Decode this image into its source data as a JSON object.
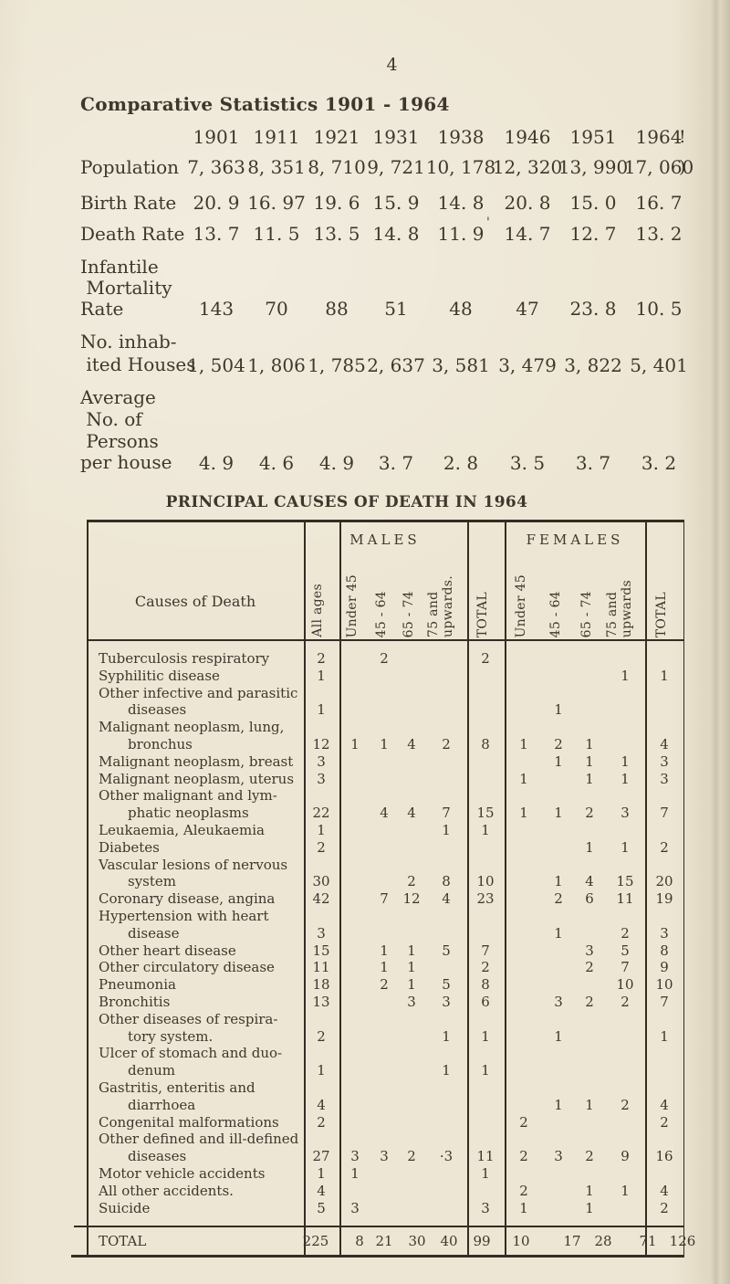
{
  "page": {
    "number": "4",
    "title": "Comparative Statistics 1901 - 1964"
  },
  "stats": {
    "years": [
      "1901",
      "1911",
      "1921",
      "1931",
      "1938",
      "1946",
      "1951",
      "1964"
    ],
    "years_edge_mark": "!",
    "rows": [
      {
        "id": "population",
        "label_lines": [
          "Population"
        ],
        "values": [
          "7, 363",
          "8, 351",
          "8, 710",
          "9, 721",
          "10, 178",
          "12, 320",
          "13, 990",
          "17, 060"
        ],
        "edge_mark": ")"
      },
      {
        "id": "birth-rate",
        "label_lines": [
          "Birth Rate"
        ],
        "values": [
          "20. 9",
          "16. 97",
          "19. 6",
          "15. 9",
          "14. 8",
          "20. 8",
          "15. 0",
          "16. 7"
        ]
      },
      {
        "id": "death-rate",
        "label_lines": [
          "Death Rate"
        ],
        "values": [
          "13. 7",
          "11. 5",
          "13. 5",
          "14. 8",
          "11. 9",
          "14. 7",
          "12. 7",
          "13. 2"
        ]
      },
      {
        "id": "infantile-mortality-rate",
        "label_lines": [
          "Infantile",
          " Mortality",
          "Rate"
        ],
        "values": [
          "143",
          "70",
          "88",
          "51",
          "48",
          "47",
          "23. 8",
          "10. 5"
        ]
      },
      {
        "id": "inhabited-houses",
        "label_lines": [
          "No. inhab-",
          " ited Houses"
        ],
        "values": [
          "1, 504",
          "1, 806",
          "1, 785",
          "2, 637",
          "3, 581",
          "3, 479",
          "3, 822",
          "5, 401"
        ]
      },
      {
        "id": "persons-per-house",
        "label_lines": [
          "Average",
          " No. of",
          " Persons",
          "per house"
        ],
        "values": [
          "4. 9",
          "4. 6",
          "4. 9",
          "3. 7",
          "2. 8",
          "3. 5",
          "3. 7",
          "3. 2"
        ]
      }
    ],
    "death_rate_tick": "'"
  },
  "death_table": {
    "title": "PRINCIPAL CAUSES OF DEATH IN 1964",
    "headers": {
      "causes": "Causes of Death",
      "all_ages": "All ages",
      "males": "MALES",
      "females": "FEMALES",
      "male_age_cols": [
        "Under 45",
        "45 - 64",
        "65 - 74",
        "75 and\nupwards."
      ],
      "female_age_cols": [
        "Under 45",
        "45 - 64",
        "65 - 74",
        "75 and\nupwards"
      ],
      "male_total": "TOTAL",
      "female_total": "TOTAL"
    },
    "rows": [
      {
        "cause_lines": [
          "Tuberculosis respiratory"
        ],
        "cells": [
          "2",
          "",
          "2",
          "",
          "",
          "2",
          "",
          "",
          "",
          "",
          ""
        ]
      },
      {
        "cause_lines": [
          "Syphilitic disease"
        ],
        "cells": [
          "1",
          "",
          "",
          "",
          "",
          "",
          "",
          "",
          "",
          "1",
          "1"
        ]
      },
      {
        "cause_lines": [
          "Other infective and parasitic",
          "diseases"
        ],
        "cells": [
          "1",
          "",
          "",
          "",
          "",
          "",
          "",
          "1",
          "",
          "",
          ""
        ]
      },
      {
        "cause_lines": [
          "Malignant neoplasm, lung,",
          "bronchus"
        ],
        "cells": [
          "12",
          "1",
          "1",
          "4",
          "2",
          "8",
          "1",
          "2",
          "1",
          "",
          "4"
        ]
      },
      {
        "cause_lines": [
          "Malignant neoplasm, breast"
        ],
        "cells": [
          "3",
          "",
          "",
          "",
          "",
          "",
          "",
          "1",
          "1",
          "1",
          "3"
        ]
      },
      {
        "cause_lines": [
          "Malignant neoplasm, uterus"
        ],
        "cells": [
          "3",
          "",
          "",
          "",
          "",
          "",
          "1",
          "",
          "1",
          "1",
          "3"
        ]
      },
      {
        "cause_lines": [
          "Other malignant and lym-",
          "phatic neoplasms"
        ],
        "cells": [
          "22",
          "",
          "4",
          "4",
          "7",
          "15",
          "1",
          "1",
          "2",
          "3",
          "7"
        ]
      },
      {
        "cause_lines": [
          "Leukaemia, Aleukaemia"
        ],
        "cells": [
          "1",
          "",
          "",
          "",
          "1",
          "1",
          "",
          "",
          "",
          "",
          ""
        ]
      },
      {
        "cause_lines": [
          "Diabetes"
        ],
        "cells": [
          "2",
          "",
          "",
          "",
          "",
          "",
          "",
          "",
          "1",
          "1",
          "2"
        ]
      },
      {
        "cause_lines": [
          "Vascular lesions of nervous",
          "system"
        ],
        "cells": [
          "30",
          "",
          "",
          "2",
          "8",
          "10",
          "",
          "1",
          "4",
          "15",
          "20"
        ]
      },
      {
        "cause_lines": [
          "Coronary disease, angina"
        ],
        "cells": [
          "42",
          "",
          "7",
          "12",
          "4",
          "23",
          "",
          "2",
          "6",
          "11",
          "19"
        ]
      },
      {
        "cause_lines": [
          "Hypertension with heart",
          "disease"
        ],
        "cells": [
          "3",
          "",
          "",
          "",
          "",
          "",
          "",
          "1",
          "",
          "2",
          "3"
        ]
      },
      {
        "cause_lines": [
          "Other heart disease"
        ],
        "cells": [
          "15",
          "",
          "1",
          "1",
          "5",
          "7",
          "",
          "",
          "3",
          "5",
          "8"
        ]
      },
      {
        "cause_lines": [
          "Other circulatory disease"
        ],
        "cells": [
          "11",
          "",
          "1",
          "1",
          "",
          "2",
          "",
          "",
          "2",
          "7",
          "9"
        ]
      },
      {
        "cause_lines": [
          "Pneumonia"
        ],
        "cells": [
          "18",
          "",
          "2",
          "1",
          "5",
          "8",
          "",
          "",
          "",
          "10",
          "10"
        ]
      },
      {
        "cause_lines": [
          "Bronchitis"
        ],
        "cells": [
          "13",
          "",
          "",
          "3",
          "3",
          "6",
          "",
          "3",
          "2",
          "2",
          "7"
        ]
      },
      {
        "cause_lines": [
          "Other diseases of respira-",
          "tory system."
        ],
        "cells": [
          "2",
          "",
          "",
          "",
          "1",
          "1",
          "",
          "1",
          "",
          "",
          "1"
        ]
      },
      {
        "cause_lines": [
          "Ulcer of stomach and duo-",
          "denum"
        ],
        "cells": [
          "1",
          "",
          "",
          "",
          "1",
          "1",
          "",
          "",
          "",
          "",
          ""
        ]
      },
      {
        "cause_lines": [
          "Gastritis, enteritis and",
          "diarrhoea"
        ],
        "cells": [
          "4",
          "",
          "",
          "",
          "",
          "",
          "",
          "1",
          "1",
          "2",
          "4"
        ]
      },
      {
        "cause_lines": [
          "Congenital malformations"
        ],
        "cells": [
          "2",
          "",
          "",
          "",
          "",
          "",
          "2",
          "",
          "",
          "",
          "2"
        ]
      },
      {
        "cause_lines": [
          "Other defined and ill-defined",
          "diseases"
        ],
        "cells": [
          "27",
          "3",
          "3",
          "2",
          "·3",
          "11",
          "2",
          "3",
          "2",
          "9",
          "16"
        ]
      },
      {
        "cause_lines": [
          "Motor vehicle accidents"
        ],
        "cells": [
          "1",
          "1",
          "",
          "",
          "",
          "1",
          "",
          "",
          "",
          "",
          ""
        ]
      },
      {
        "cause_lines": [
          "All other accidents."
        ],
        "cells": [
          "4",
          "",
          "",
          "",
          "",
          "",
          "2",
          "",
          "1",
          "1",
          "4"
        ]
      },
      {
        "cause_lines": [
          "Suicide"
        ],
        "cells": [
          "5",
          "3",
          "",
          "",
          "",
          "3",
          "1",
          "",
          "1",
          "",
          "2"
        ]
      }
    ],
    "total_row": {
      "label": "TOTAL",
      "cells": [
        "225",
        "8",
        "21",
        "30",
        "40",
        "99",
        "10",
        "17",
        "28",
        "71",
        "126"
      ]
    }
  }
}
